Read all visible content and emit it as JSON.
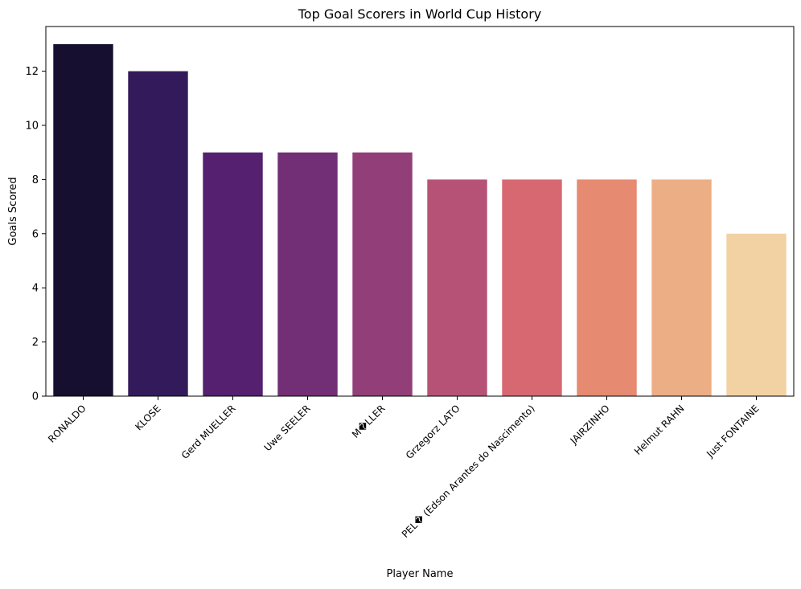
{
  "chart_data": {
    "type": "bar",
    "title": "Top Goal Scorers in World Cup History",
    "xlabel": "Player Name",
    "ylabel": "Goals Scored",
    "categories": [
      "RONALDO",
      "KLOSE",
      "Gerd MUELLER",
      "Uwe SEELER",
      "M�LLER",
      "Grzegorz LATO",
      "PEL� (Edson Arantes do Nascimento)",
      "JAIRZINHO",
      "Helmut RAHN",
      "Just FONTAINE"
    ],
    "values": [
      13,
      12,
      9,
      9,
      9,
      8,
      8,
      8,
      8,
      6
    ],
    "colors": [
      "#170f30",
      "#331b5b",
      "#55206f",
      "#722f75",
      "#923e78",
      "#b65276",
      "#d76871",
      "#e68a71",
      "#ecae84",
      "#f2d1a2"
    ],
    "ylim": [
      0,
      13.65
    ],
    "yticks": [
      0,
      2,
      4,
      6,
      8,
      10,
      12
    ],
    "grid": false,
    "legend": "none"
  }
}
